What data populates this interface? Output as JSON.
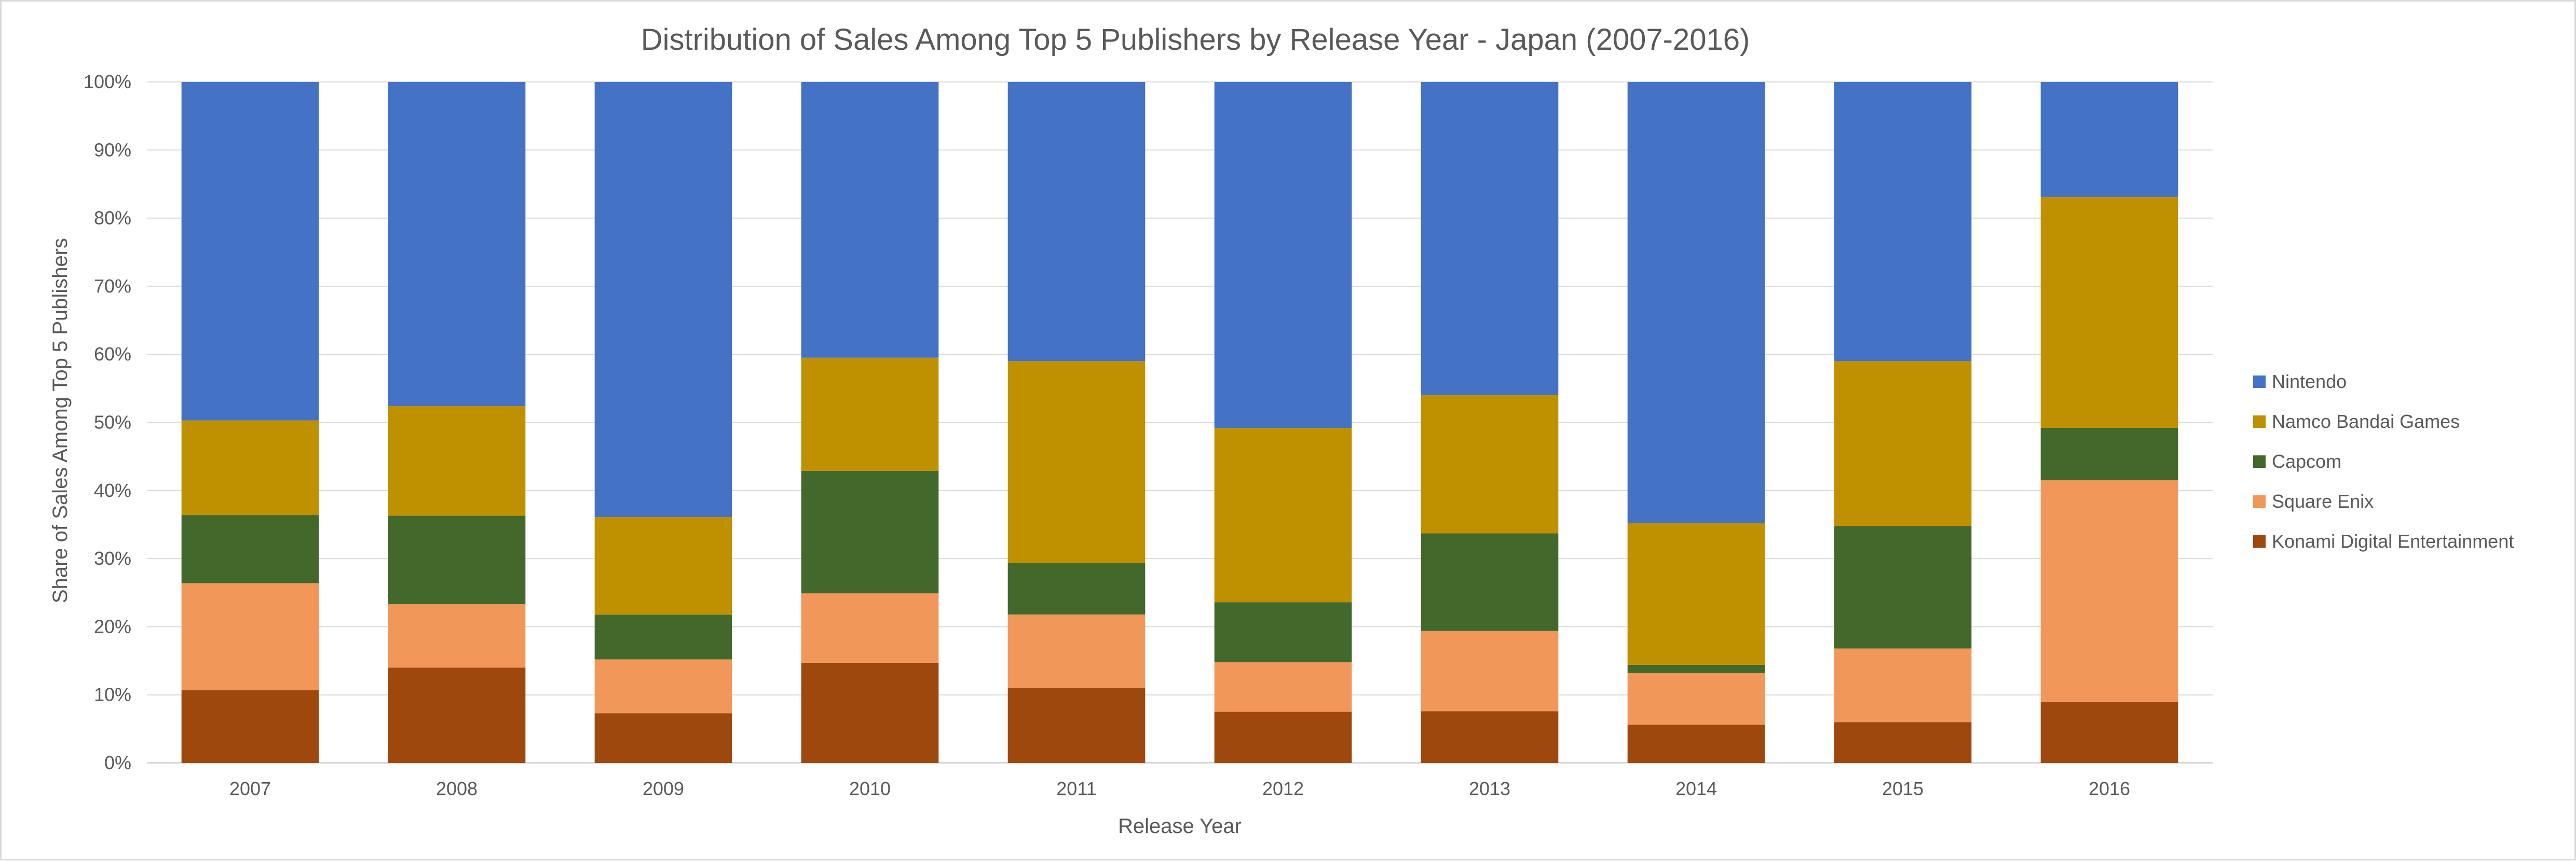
{
  "chart_data": {
    "type": "bar",
    "stacked": true,
    "percent": true,
    "title": "Distribution of Sales Among Top 5 Publishers by Release Year - Japan (2007-2016)",
    "xlabel": "Release Year",
    "ylabel": "Share of Sales Among Top 5 Publishers",
    "ylim": [
      0,
      100
    ],
    "yticks": [
      "0%",
      "10%",
      "20%",
      "30%",
      "40%",
      "50%",
      "60%",
      "70%",
      "80%",
      "90%",
      "100%"
    ],
    "grid": true,
    "legend_position": "right",
    "categories": [
      "2007",
      "2008",
      "2009",
      "2010",
      "2011",
      "2012",
      "2013",
      "2014",
      "2015",
      "2016"
    ],
    "series": [
      {
        "name": "Konami Digital Entertainment",
        "color": "#9e480e",
        "values": [
          10.7,
          14.0,
          7.3,
          14.7,
          11.0,
          7.5,
          7.6,
          5.6,
          6.0,
          9.0
        ]
      },
      {
        "name": "Square Enix",
        "color": "#f1975a",
        "values": [
          15.7,
          9.3,
          7.9,
          10.2,
          10.8,
          7.3,
          11.8,
          7.6,
          10.8,
          32.5
        ]
      },
      {
        "name": "Capcom",
        "color": "#43682b",
        "values": [
          10.0,
          13.0,
          6.6,
          18.0,
          7.6,
          8.8,
          14.3,
          1.2,
          18.0,
          7.7
        ]
      },
      {
        "name": "Namco Bandai Games",
        "color": "#bf9000",
        "values": [
          13.9,
          16.1,
          14.3,
          16.6,
          29.6,
          25.6,
          20.3,
          20.8,
          24.2,
          33.9
        ]
      },
      {
        "name": "Nintendo",
        "color": "#4472c4",
        "values": [
          49.7,
          47.6,
          63.9,
          40.5,
          41.0,
          50.8,
          46.0,
          64.8,
          41.0,
          16.9
        ]
      }
    ],
    "legend_order": [
      "Nintendo",
      "Namco Bandai Games",
      "Capcom",
      "Square Enix",
      "Konami Digital Entertainment"
    ]
  }
}
